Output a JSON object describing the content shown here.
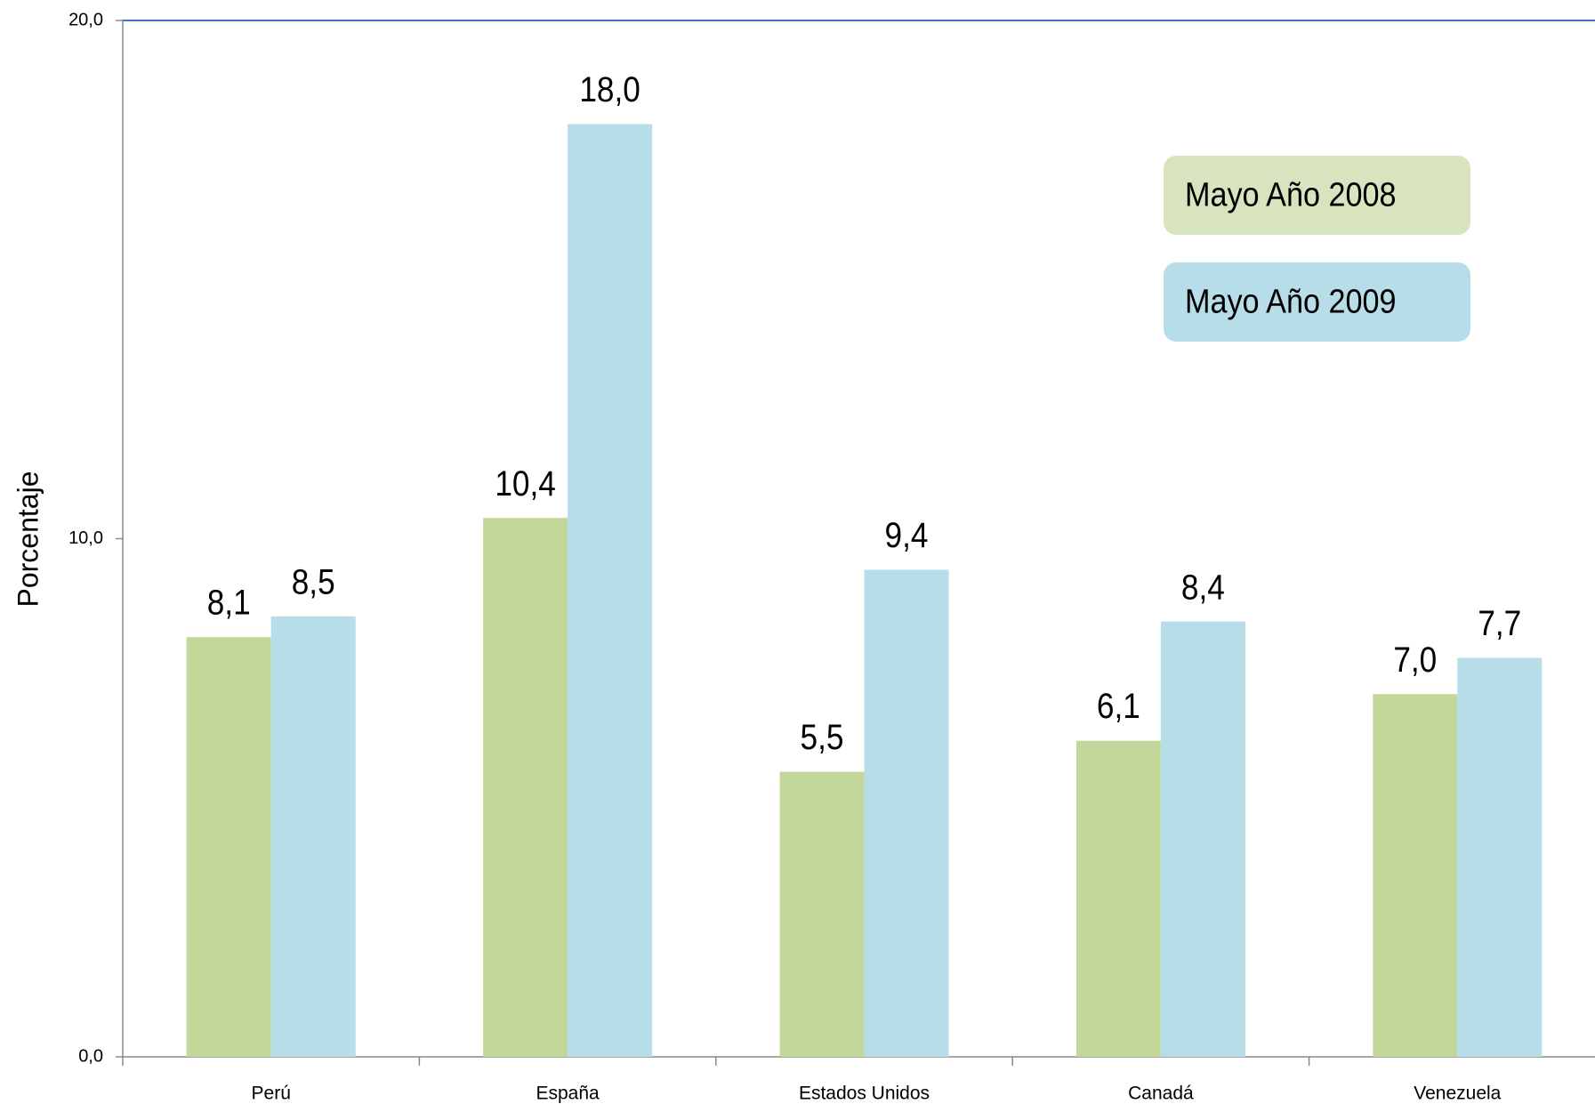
{
  "chart_data": {
    "type": "bar",
    "y_label": "Porcentaje",
    "categories": [
      "Perú",
      "España",
      "Estados Unidos",
      "Canadá",
      "Venezuela"
    ],
    "series": [
      {
        "name": "Mayo Año 2008",
        "color": "#c4d79b",
        "values": [
          8.1,
          10.4,
          5.5,
          6.1,
          7.0
        ],
        "value_labels": [
          "8,1",
          "10,4",
          "5,5",
          "6,1",
          "7,0"
        ]
      },
      {
        "name": "Mayo Año 2009",
        "color": "#b7dde8",
        "values": [
          8.5,
          18.0,
          9.4,
          8.4,
          7.7
        ],
        "value_labels": [
          "8,5",
          "18,0",
          "9,4",
          "8,4",
          "7,7"
        ]
      }
    ],
    "ylim": [
      0,
      20
    ],
    "yticks": [
      {
        "value": 0,
        "label": "0,0"
      },
      {
        "value": 10,
        "label": "10,0"
      },
      {
        "value": 20,
        "label": "20,0"
      }
    ],
    "legend": "upper right"
  }
}
